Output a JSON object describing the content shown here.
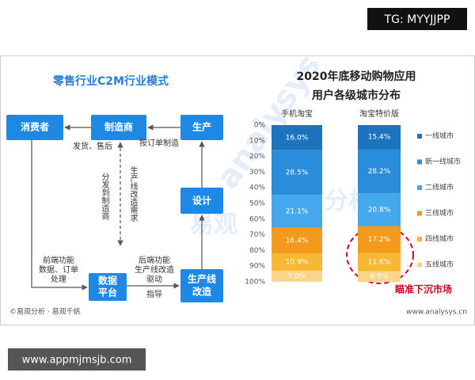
{
  "watermark_top": "TG: MYYJJPP",
  "watermark_bottom": "www.appmjmsjb.com",
  "watermark_faint": [
    "analysys",
    "易观",
    "分析"
  ],
  "diagram": {
    "title": "零售行业C2M行业模式",
    "nodes": [
      {
        "label": [
          "消费者"
        ]
      },
      {
        "label": [
          "制造商"
        ]
      },
      {
        "label": [
          "生产"
        ]
      },
      {
        "label": [
          "设计"
        ]
      },
      {
        "label": [
          "数据",
          "平台"
        ]
      },
      {
        "label": [
          "生产线",
          "改造"
        ]
      }
    ],
    "edge_labels": [
      [
        "发货、售后"
      ],
      [
        "按订单制造"
      ],
      [
        "分发到制造商"
      ],
      [
        "生产线改造需求"
      ],
      [
        "前端功能",
        "数据、订单",
        "处理"
      ],
      [
        "后端功能",
        "生产线改造",
        "驱动"
      ],
      [
        "指导"
      ]
    ]
  },
  "chart_data": {
    "type": "stacked_bar",
    "title": "2020年底移动购物应用",
    "subtitle": "用户各级城市分布",
    "categories": [
      "手机淘宝",
      "淘宝特价版"
    ],
    "ylim": [
      0,
      100
    ],
    "y_reversed": true,
    "yticks": [
      {
        "value": 0,
        "label": "0%"
      },
      {
        "value": 10,
        "label": "10%"
      },
      {
        "value": 20,
        "label": "20%"
      },
      {
        "value": 30,
        "label": "30%"
      },
      {
        "value": 40,
        "label": "40%"
      },
      {
        "value": 50,
        "label": "50%"
      },
      {
        "value": 60,
        "label": "60%"
      },
      {
        "value": 70,
        "label": "70%"
      },
      {
        "value": 80,
        "label": "80%"
      },
      {
        "value": 90,
        "label": "90%"
      },
      {
        "value": 100,
        "label": "100%"
      }
    ],
    "legend": "right",
    "series": [
      {
        "name": "一线城市",
        "color": "#1c74bf",
        "values": [
          16.0,
          15.4
        ],
        "value_labels": [
          "16.0%",
          "15.4%"
        ]
      },
      {
        "name": "新一线城市",
        "color": "#2a8ddc",
        "values": [
          28.5,
          28.2
        ],
        "value_labels": [
          "28.5%",
          "28.2%"
        ]
      },
      {
        "name": "二线城市",
        "color": "#46a8ec",
        "values": [
          21.1,
          20.8
        ],
        "value_labels": [
          "21.1%",
          "20.8%"
        ]
      },
      {
        "name": "三线城市",
        "color": "#f39a1c",
        "values": [
          16.4,
          17.2
        ],
        "value_labels": [
          "16.4%",
          "17.2%"
        ]
      },
      {
        "name": "四线城市",
        "color": "#f9b834",
        "values": [
          10.9,
          11.6
        ],
        "value_labels": [
          "10.9%",
          "11.6%"
        ]
      },
      {
        "name": "五线城市",
        "color": "#fcd58a",
        "values": [
          7.0,
          6.9
        ],
        "value_labels": [
          "7.0%",
          "6.9%"
        ]
      }
    ],
    "annotation": "瞄准下沉市场",
    "footer_left": "©易观分析 · 易观千帆",
    "footer_right": "www.analysys.cn"
  }
}
